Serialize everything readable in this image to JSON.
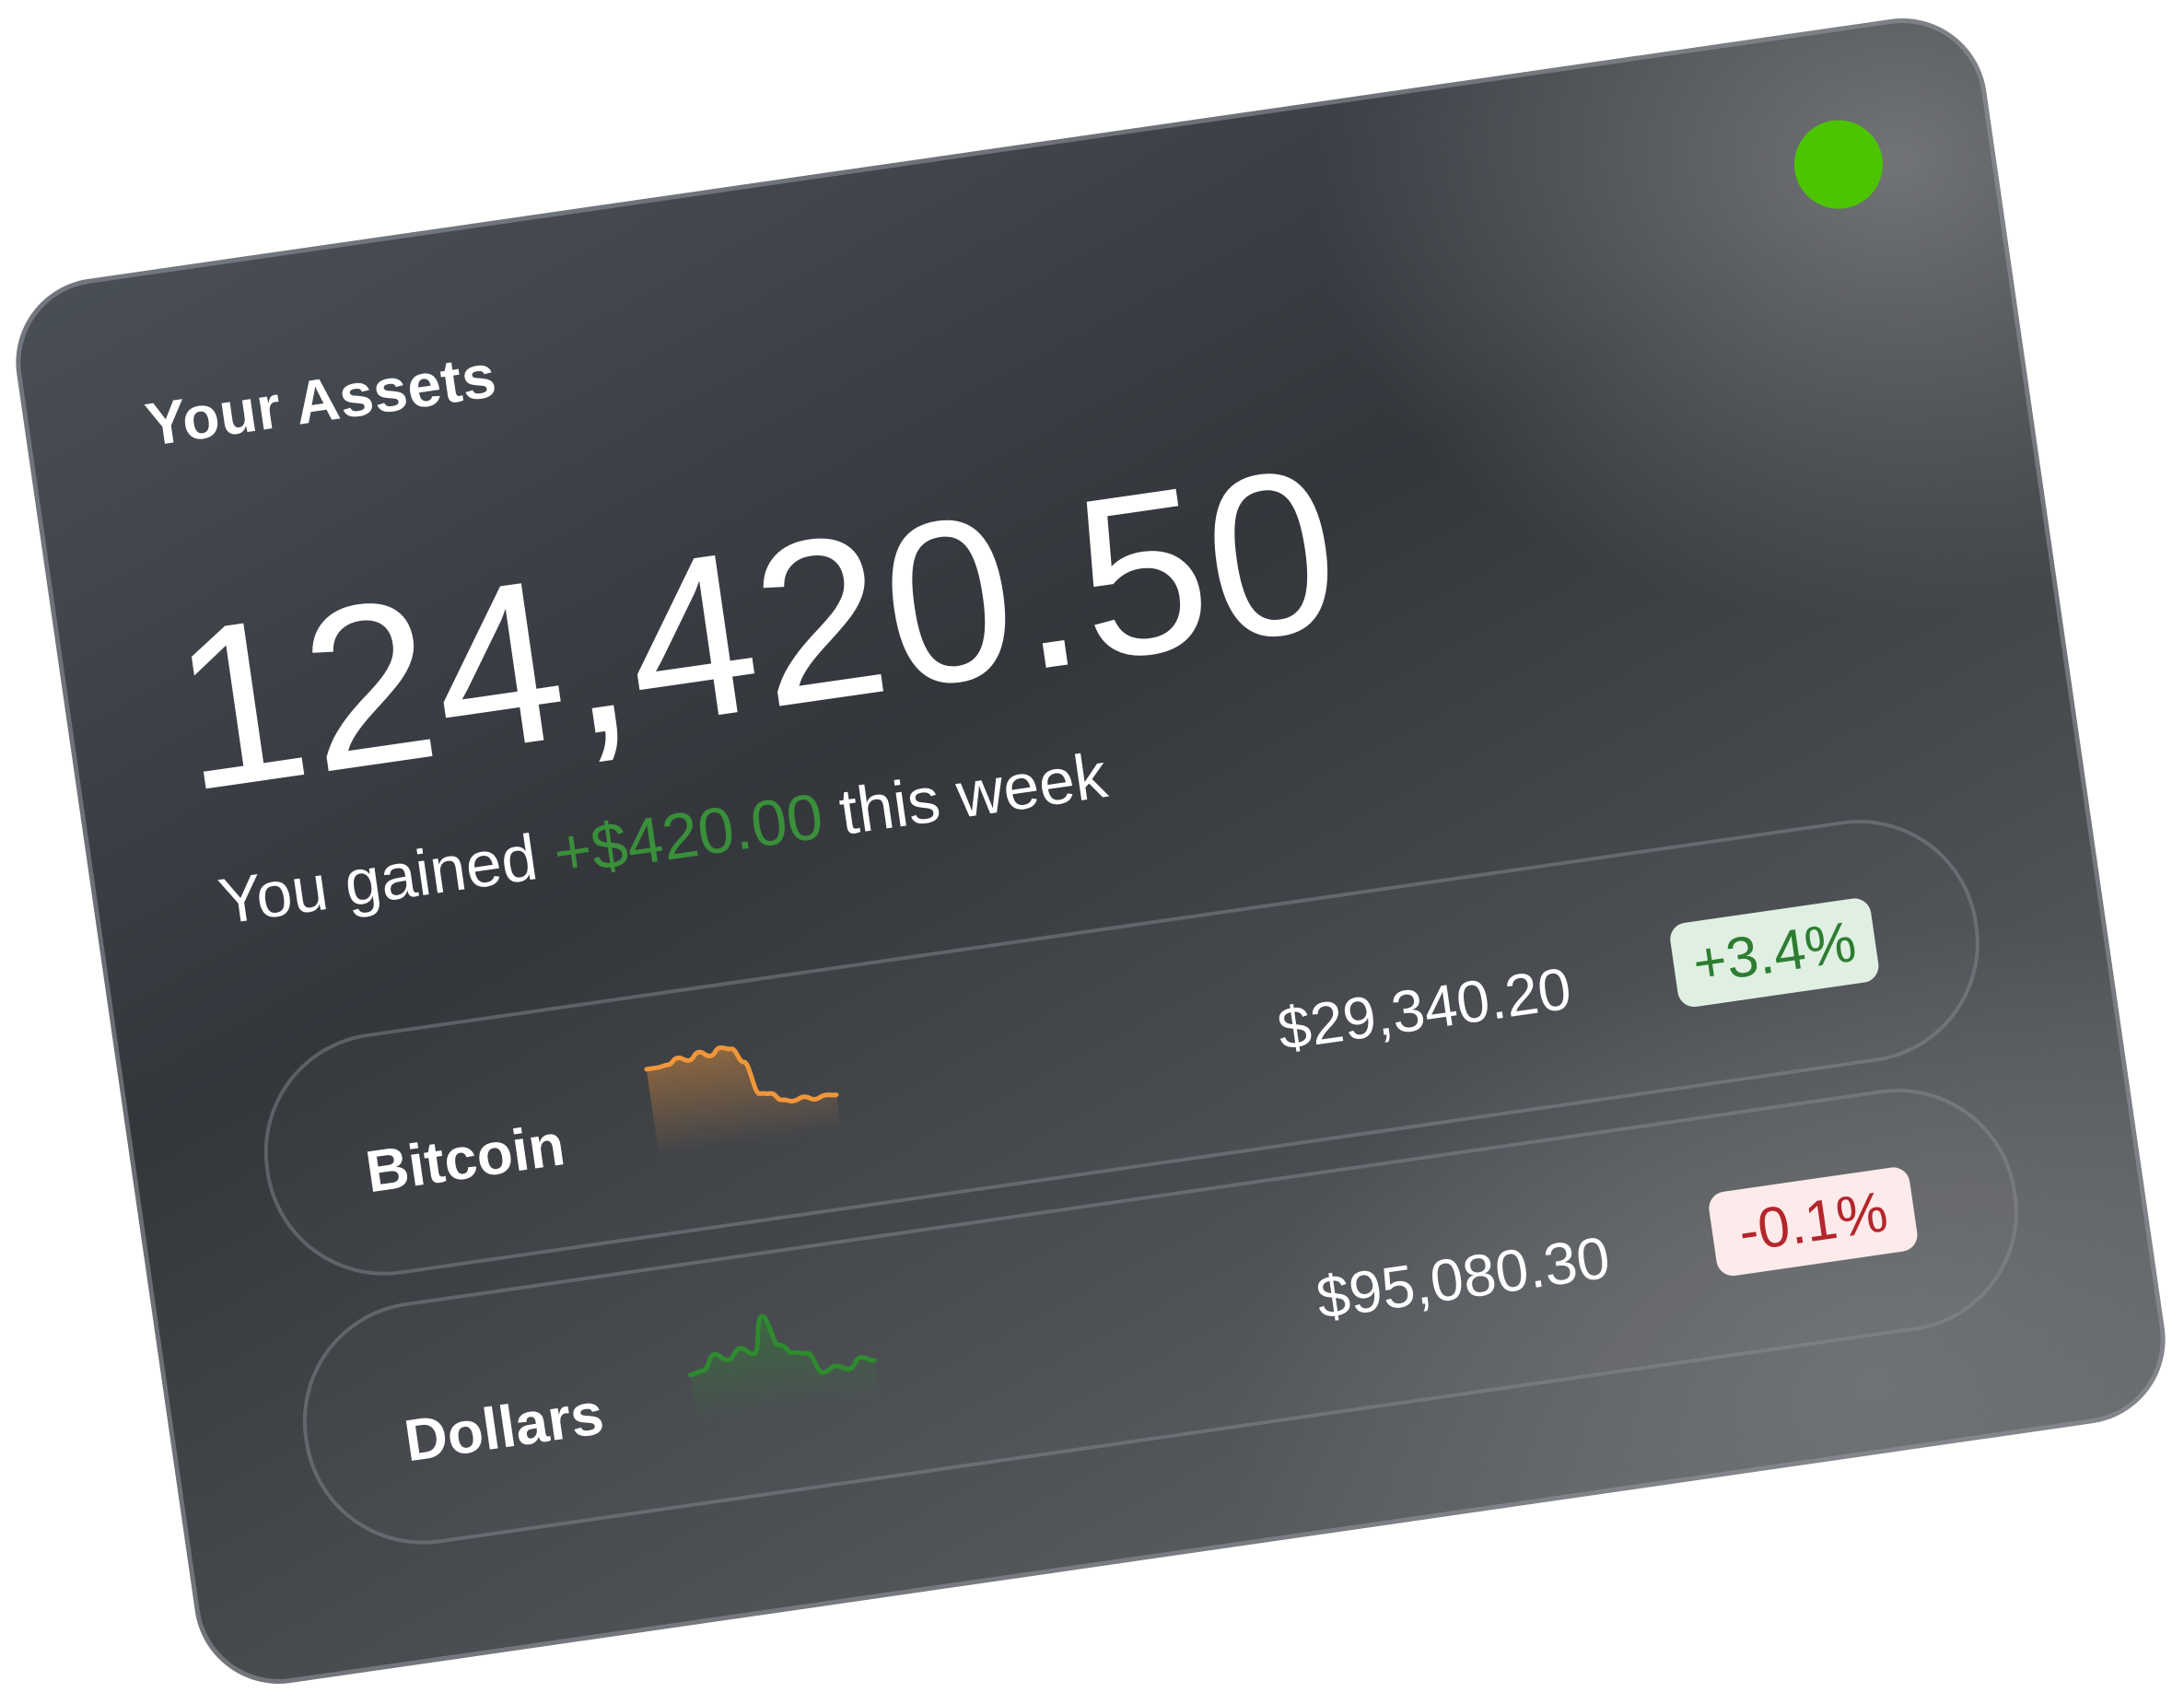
{
  "status": {
    "color": "#4cc400",
    "icon": "status-dot"
  },
  "title": "Your Assets",
  "total": "124,420.50",
  "gain": {
    "prefix": "You gained",
    "amount": "+$420.00",
    "suffix": "this week",
    "color": "#3a8f3a"
  },
  "assets": [
    {
      "name": "Bitcoin",
      "price": "$29,340.20",
      "change": "+3.4%",
      "trend": "up",
      "line_color": "#f0963a",
      "spark": [
        20,
        20,
        22,
        30,
        24,
        34,
        26,
        36,
        32,
        10,
        -40,
        -42,
        -54,
        -58,
        -54,
        -60,
        -56,
        -58
      ]
    },
    {
      "name": "Dollars",
      "price": "$95,080.30",
      "change": "-0.1%",
      "trend": "down",
      "line_color": "#2e8b2e",
      "spark": [
        0,
        2,
        14,
        8,
        16,
        10,
        40,
        14,
        6,
        4,
        -14,
        -10,
        -14,
        -6,
        -10
      ]
    }
  ]
}
